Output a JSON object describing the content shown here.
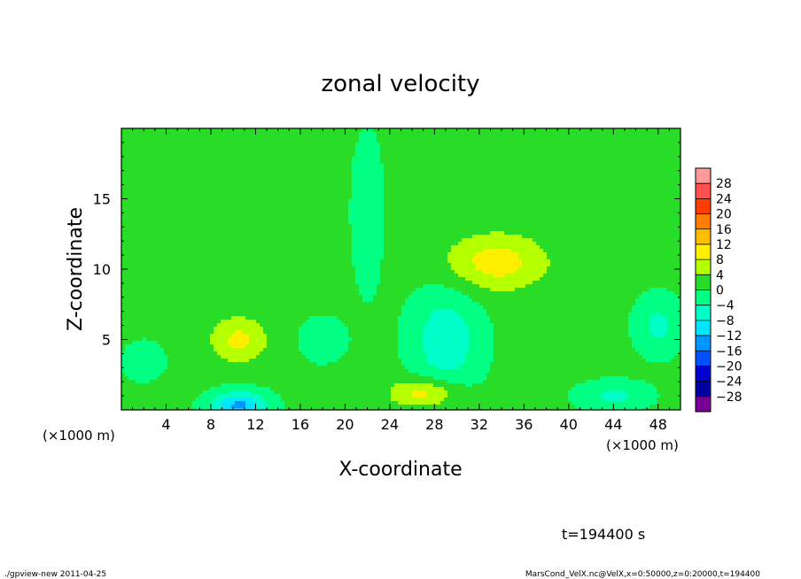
{
  "chart_data": {
    "type": "heatmap",
    "title": "zonal velocity",
    "xlabel": "X-coordinate",
    "ylabel": "Z-coordinate",
    "x_unit_label": "(×1000 m)",
    "x_unit_label_right": "(×1000 m)",
    "xlim": [
      0,
      50
    ],
    "ylim": [
      0,
      20
    ],
    "x_ticks": [
      4,
      8,
      12,
      16,
      20,
      24,
      28,
      32,
      36,
      40,
      44,
      48
    ],
    "y_ticks": [
      5,
      10,
      15
    ],
    "colorbar": {
      "levels": [
        28,
        24,
        20,
        16,
        12,
        8,
        4,
        0,
        -4,
        -8,
        -12,
        -16,
        -20,
        -24,
        -28
      ],
      "labels": [
        "28",
        "24",
        "20",
        "16",
        "12",
        "8",
        "4",
        "0",
        "−4",
        "−8",
        "−12",
        "−16",
        "−20",
        "−24",
        "−28"
      ],
      "colors": [
        "#ff9a9a",
        "#ff5050",
        "#ff3c00",
        "#ff7d00",
        "#ffbe00",
        "#fff000",
        "#b4ff00",
        "#28dc28",
        "#00ff82",
        "#00ffc8",
        "#00e6ff",
        "#0096ff",
        "#0050ff",
        "#0000d2",
        "#0000a0",
        "#780096"
      ]
    },
    "background_value": 1,
    "features": [
      {
        "x": 33.5,
        "z": 10.5,
        "sx": 4.5,
        "sz": 2.0,
        "amp": 9
      },
      {
        "x": 10.5,
        "z": 5.0,
        "sx": 2.5,
        "sz": 1.6,
        "amp": 8
      },
      {
        "x": 27.0,
        "z": 1.2,
        "sx": 3.0,
        "sz": 1.0,
        "amp": 9
      },
      {
        "x": 10.5,
        "z": 0.3,
        "sx": 2.5,
        "sz": 1.0,
        "amp": -14
      },
      {
        "x": 29.0,
        "z": 5.0,
        "sx": 3.0,
        "sz": 3.5,
        "amp": -8
      },
      {
        "x": 22.0,
        "z": 14.0,
        "sx": 1.5,
        "sz": 6.0,
        "amp": -3
      },
      {
        "x": 44.0,
        "z": 1.0,
        "sx": 3.0,
        "sz": 1.0,
        "amp": -6
      },
      {
        "x": 48.0,
        "z": 6.0,
        "sx": 2.0,
        "sz": 2.0,
        "amp": -6
      },
      {
        "x": 2.0,
        "z": 3.5,
        "sx": 2.0,
        "sz": 1.5,
        "amp": -3
      },
      {
        "x": 18.0,
        "z": 5.0,
        "sx": 2.0,
        "sz": 1.5,
        "amp": -4
      },
      {
        "x": 3.0,
        "z": 13.0,
        "sx": 5.0,
        "sz": 4.0,
        "amp": 3
      }
    ]
  },
  "time_label": "t=194400 s",
  "footer": {
    "left": "./gpview-new   2011-04-25",
    "right": "MarsCond_VelX.nc@VelX,x=0:50000,z=0:20000,t=194400"
  }
}
